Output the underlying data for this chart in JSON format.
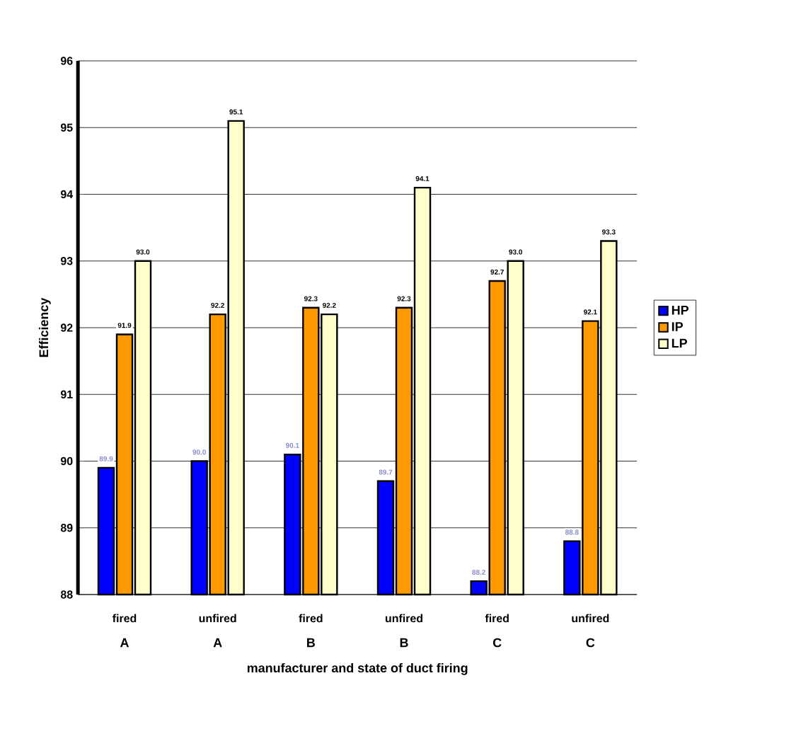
{
  "chart_data": {
    "type": "bar",
    "xlabel": "manufacturer and state of  duct firing",
    "ylabel": "Efficiency",
    "categories": [
      "fired",
      "unfired",
      "fired",
      "unfired",
      "fired",
      "unfired"
    ],
    "annotations": [
      "A",
      "A",
      "B",
      "B",
      "C",
      "C"
    ],
    "series": [
      {
        "name": "HP",
        "color": "#0000ff",
        "values": [
          89.9,
          90.0,
          90.1,
          89.7,
          88.2,
          88.8
        ],
        "value_labels": [
          "89.9",
          "90.0",
          "90.1",
          "89.7",
          "88.2",
          "88.8"
        ]
      },
      {
        "name": "IP",
        "color": "#ff9900",
        "values": [
          91.9,
          92.2,
          92.3,
          92.3,
          92.7,
          92.1
        ],
        "value_labels": [
          "91.9",
          "92.2",
          "92.3",
          "92.3",
          "92.7",
          "92.1"
        ]
      },
      {
        "name": "LP",
        "color": "#ffffcc",
        "values": [
          93.0,
          95.1,
          92.2,
          94.1,
          93.0,
          93.3
        ],
        "value_labels": [
          "93.0",
          "95.1",
          "92.2",
          "94.1",
          "93.0",
          "93.3"
        ]
      }
    ],
    "ylim": [
      88,
      96
    ],
    "yticks": [
      88,
      89,
      90,
      91,
      92,
      93,
      94,
      95,
      96
    ],
    "grid": "y",
    "legend": "right"
  }
}
